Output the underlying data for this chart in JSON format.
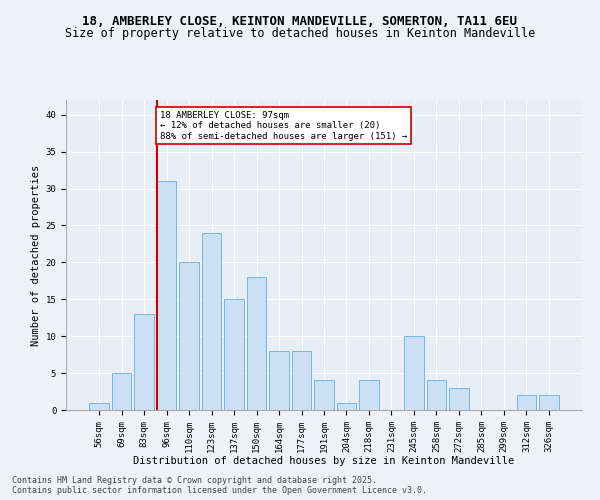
{
  "title_line1": "18, AMBERLEY CLOSE, KEINTON MANDEVILLE, SOMERTON, TA11 6EU",
  "title_line2": "Size of property relative to detached houses in Keinton Mandeville",
  "xlabel": "Distribution of detached houses by size in Keinton Mandeville",
  "ylabel": "Number of detached properties",
  "categories": [
    "56sqm",
    "69sqm",
    "83sqm",
    "96sqm",
    "110sqm",
    "123sqm",
    "137sqm",
    "150sqm",
    "164sqm",
    "177sqm",
    "191sqm",
    "204sqm",
    "218sqm",
    "231sqm",
    "245sqm",
    "258sqm",
    "272sqm",
    "285sqm",
    "299sqm",
    "312sqm",
    "326sqm"
  ],
  "values": [
    1,
    5,
    13,
    31,
    20,
    24,
    15,
    18,
    8,
    8,
    4,
    1,
    4,
    0,
    10,
    4,
    3,
    0,
    0,
    2,
    2
  ],
  "bar_color": "#cce0f5",
  "bar_edge_color": "#6aaed6",
  "vline_color": "#cc0000",
  "vline_x": 3,
  "annotation_text": "18 AMBERLEY CLOSE: 97sqm\n← 12% of detached houses are smaller (20)\n88% of semi-detached houses are larger (151) →",
  "annotation_box_facecolor": "white",
  "annotation_box_edgecolor": "#cc0000",
  "ylim": [
    0,
    42
  ],
  "yticks": [
    0,
    5,
    10,
    15,
    20,
    25,
    30,
    35,
    40
  ],
  "footer_line1": "Contains HM Land Registry data © Crown copyright and database right 2025.",
  "footer_line2": "Contains public sector information licensed under the Open Government Licence v3.0.",
  "bg_color": "#eef2f8",
  "plot_bg_color": "#e8eef6",
  "grid_color": "white",
  "title_fontsize": 9,
  "subtitle_fontsize": 8.5,
  "axis_label_fontsize": 7.5,
  "tick_fontsize": 6.5,
  "annotation_fontsize": 6.5,
  "footer_fontsize": 6
}
